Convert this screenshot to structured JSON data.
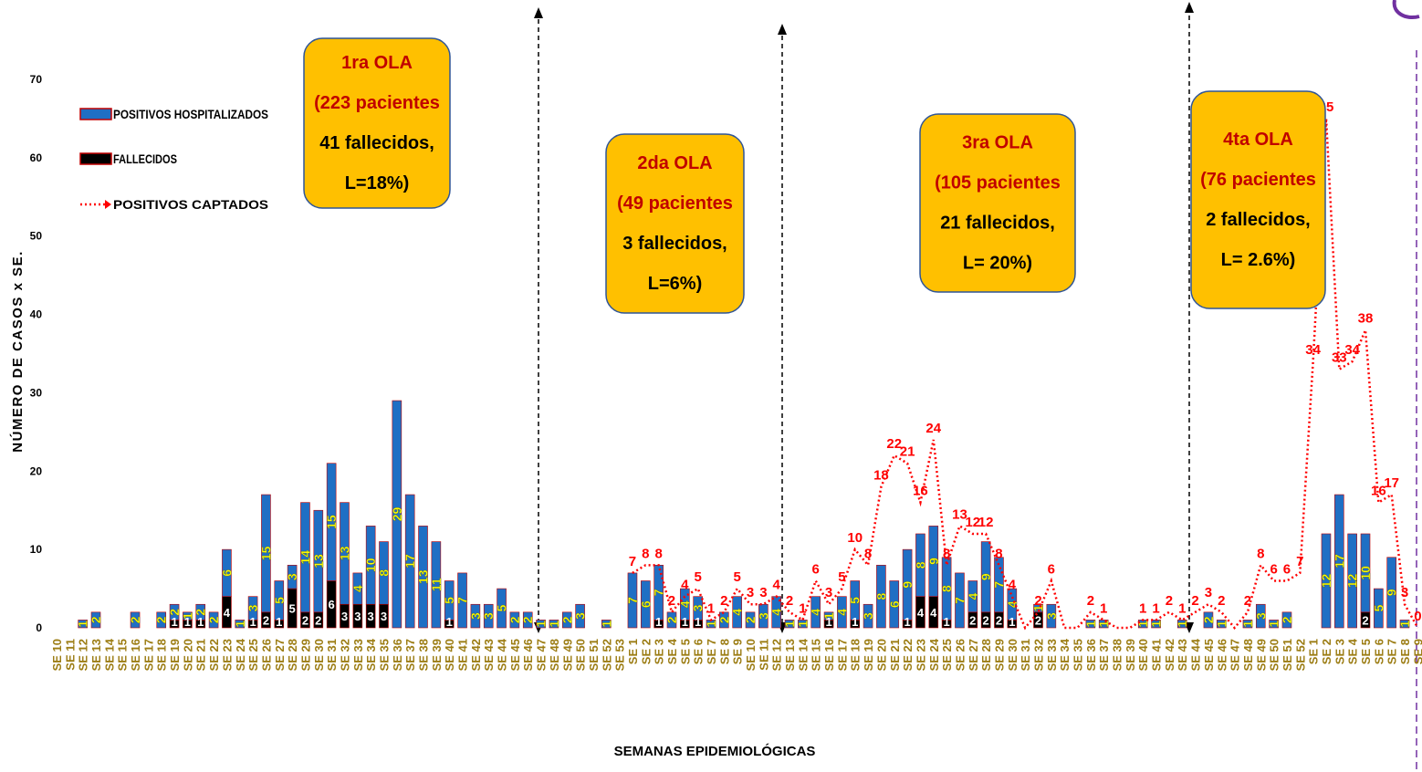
{
  "chart_data": {
    "type": "bar",
    "y_label": "NÚMERO DE CASOS x SE.",
    "x_label": "SEMANAS EPIDEMIOLÓGICAS",
    "categories": [
      "SE 10",
      "SE 11",
      "SE 12",
      "SE 13",
      "SE 14",
      "SE 15",
      "SE 16",
      "SE 17",
      "SE 18",
      "SE 19",
      "SE 20",
      "SE 21",
      "SE 22",
      "SE 23",
      "SE 24",
      "SE 25",
      "SE 26",
      "SE 27",
      "SE 28",
      "SE 29",
      "SE 30",
      "SE 31",
      "SE 32",
      "SE 33",
      "SE 34",
      "SE 35",
      "SE 36",
      "SE 37",
      "SE 38",
      "SE 39",
      "SE 40",
      "SE 41",
      "SE 42",
      "SE 43",
      "SE 44",
      "SE 45",
      "SE 46",
      "SE 47",
      "SE 48",
      "SE 49",
      "SE 50",
      "SE 51",
      "SE 52",
      "SE 53",
      "SE 1",
      "SE 2",
      "SE 3",
      "SE 4",
      "SE 5",
      "SE 6",
      "SE 7",
      "SE 8",
      "SE 9",
      "SE 10",
      "SE 11",
      "SE 12",
      "SE 13",
      "SE 14",
      "SE 15",
      "SE 16",
      "SE 17",
      "SE 18",
      "SE 19",
      "SE 20",
      "SE 21",
      "SE 22",
      "SE 23",
      "SE 24",
      "SE 25",
      "SE 26",
      "SE 27",
      "SE 28",
      "SE 29",
      "SE 30",
      "SE 31",
      "SE 32",
      "SE 33",
      "SE 34",
      "SE 35",
      "SE 36",
      "SE 37",
      "SE 38",
      "SE 39",
      "SE 40",
      "SE 41",
      "SE 42",
      "SE 43",
      "SE 44",
      "SE 45",
      "SE 46",
      "SE 47",
      "SE 48",
      "SE 49",
      "SE 50",
      "SE 51",
      "SE 52",
      "SE 1",
      "SE 2",
      "SE 3",
      "SE 4",
      "SE 5",
      "SE 6",
      "SE 7",
      "SE 8",
      "SE 9"
    ],
    "series": [
      {
        "name": "POSITIVOS HOSPITALIZADOS",
        "color": "#1f6fc4",
        "values": [
          0,
          0,
          1,
          2,
          0,
          0,
          2,
          0,
          2,
          2,
          1,
          2,
          2,
          6,
          1,
          3,
          15,
          5,
          3,
          14,
          13,
          15,
          13,
          4,
          10,
          8,
          29,
          17,
          13,
          11,
          5,
          7,
          3,
          3,
          5,
          2,
          2,
          1,
          1,
          2,
          3,
          0,
          1,
          0,
          7,
          6,
          7,
          2,
          4,
          3,
          1,
          2,
          4,
          2,
          3,
          4,
          1,
          1,
          4,
          1,
          4,
          5,
          3,
          8,
          6,
          9,
          8,
          9,
          8,
          7,
          4,
          9,
          7,
          4,
          0,
          1,
          3,
          0,
          0,
          1,
          1,
          0,
          0,
          1,
          1,
          0,
          1,
          0,
          2,
          1,
          0,
          1,
          3,
          1,
          2,
          0,
          0,
          12,
          17,
          12,
          10,
          5,
          9,
          1,
          0
        ]
      },
      {
        "name": "FALLECIDOS",
        "color": "#000000",
        "values": [
          0,
          0,
          0,
          0,
          0,
          0,
          0,
          0,
          0,
          1,
          1,
          1,
          0,
          4,
          0,
          1,
          2,
          1,
          5,
          2,
          2,
          6,
          3,
          3,
          3,
          3,
          0,
          0,
          0,
          0,
          1,
          0,
          0,
          0,
          0,
          0,
          0,
          0,
          0,
          0,
          0,
          0,
          0,
          0,
          0,
          0,
          1,
          0,
          1,
          1,
          0,
          0,
          0,
          0,
          0,
          0,
          0,
          0,
          0,
          1,
          0,
          1,
          0,
          0,
          0,
          1,
          4,
          4,
          1,
          0,
          2,
          2,
          2,
          1,
          0,
          2,
          0,
          0,
          0,
          0,
          0,
          0,
          0,
          0,
          0,
          0,
          0,
          0,
          0,
          0,
          0,
          0,
          0,
          0,
          0,
          0,
          0,
          0,
          0,
          0,
          2,
          0,
          0,
          0,
          0
        ]
      },
      {
        "name": "POSITIVOS CAPTADOS",
        "color": "#ff0000",
        "type": "line",
        "values": [
          null,
          null,
          null,
          null,
          null,
          null,
          null,
          null,
          null,
          null,
          null,
          null,
          null,
          null,
          null,
          null,
          null,
          null,
          null,
          null,
          null,
          null,
          null,
          null,
          null,
          null,
          null,
          null,
          null,
          null,
          null,
          null,
          null,
          null,
          null,
          null,
          null,
          null,
          null,
          null,
          null,
          null,
          null,
          null,
          7,
          8,
          8,
          2,
          4,
          5,
          1,
          2,
          5,
          3,
          3,
          4,
          2,
          1,
          6,
          3,
          5,
          10,
          8,
          18,
          22,
          21,
          16,
          24,
          8,
          13,
          12,
          12,
          8,
          4,
          0,
          2,
          6,
          0,
          0,
          2,
          1,
          0,
          0,
          1,
          1,
          2,
          1,
          2,
          3,
          2,
          0,
          2,
          8,
          6,
          6,
          7,
          34,
          65,
          33,
          34,
          38,
          16,
          17,
          3,
          0
        ]
      }
    ],
    "ylim": [
      0,
      70
    ],
    "yticks": [
      0,
      10,
      20,
      30,
      40,
      50,
      60,
      70
    ],
    "grid": false,
    "annotations": [
      {
        "lines": [
          "1ra OLA",
          "(223 pacientes",
          "41 fallecidos,",
          "L=18%)"
        ]
      },
      {
        "lines": [
          "2da OLA",
          "(49 pacientes",
          "3 fallecidos,",
          "L=6%)"
        ]
      },
      {
        "lines": [
          "3ra OLA",
          "(105 pacientes",
          "21 fallecidos,",
          "L= 20%)"
        ]
      },
      {
        "lines": [
          "4ta OLA",
          "(76 pacientes",
          "2 fallecidos,",
          "L= 2.6%)"
        ]
      }
    ]
  }
}
